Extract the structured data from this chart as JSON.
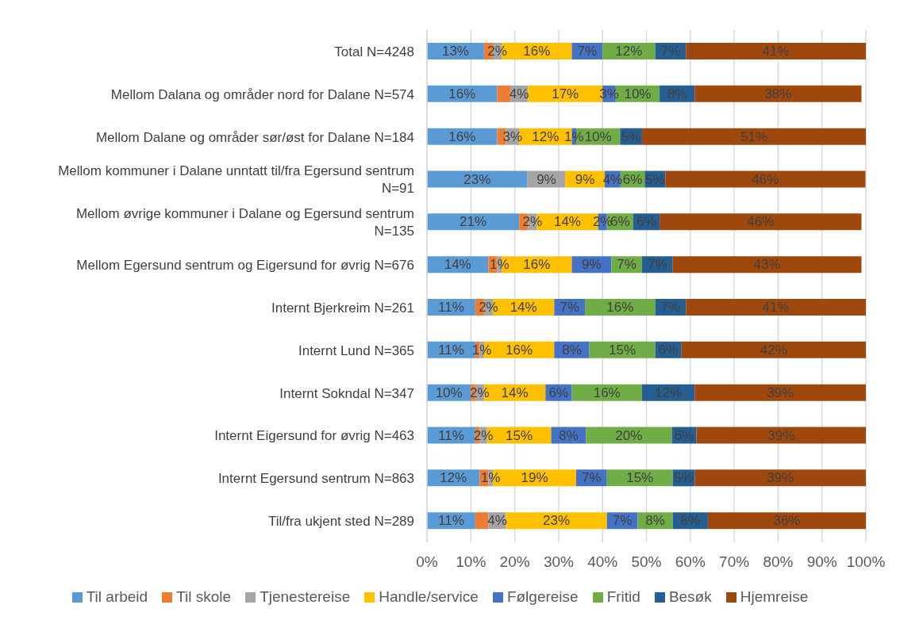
{
  "chart_data": {
    "type": "bar",
    "orientation": "horizontal",
    "stacked": true,
    "categories": [
      "Total N=4248",
      "Mellom Dalana og områder nord for Dalane N=574",
      "Mellom Dalane og områder sør/øst for Dalane N=184",
      "Mellom kommuner i Dalane unntatt til/fra Egersund sentrum N=91",
      "Mellom øvrige kommuner i Dalane og Egersund sentrum N=135",
      "Mellom Egersund sentrum og Eigersund for øvrig N=676",
      "Internt Bjerkreim N=261",
      "Internt Lund N=365",
      "Internt Sokndal N=347",
      "Internt Eigersund for øvrig N=463",
      "Internt Egersund sentrum N=863",
      "Til/fra ukjent sted N=289"
    ],
    "series": [
      {
        "name": "Til arbeid",
        "color": "#5b9bd5",
        "values": [
          13,
          16,
          16,
          22.9,
          21,
          14,
          11,
          11,
          10,
          11.0,
          12,
          11
        ],
        "value_labels": [
          "13%",
          "16%",
          "16%",
          "23%",
          "21%",
          "14%",
          "11%",
          "11%",
          "10%",
          "11%",
          "12%",
          "11%"
        ]
      },
      {
        "name": "Til skole",
        "color": "#ed7d31",
        "values": [
          2,
          3,
          2,
          0,
          2,
          2,
          2,
          1,
          1,
          1.0,
          2,
          3
        ],
        "value_labels": [
          null,
          null,
          null,
          null,
          null,
          null,
          null,
          null,
          null,
          null,
          null,
          null
        ]
      },
      {
        "name": "Tjenestereise",
        "color": "#a5a5a5",
        "values": [
          2,
          4,
          3,
          8.6,
          2,
          1,
          2,
          1,
          2,
          1.7,
          1,
          4
        ],
        "value_labels": [
          "2%",
          "4%",
          "3%",
          "9%",
          "2%",
          "1%",
          "2%",
          "1%",
          "2%",
          "2%",
          "1%",
          "4%"
        ]
      },
      {
        "name": "Handle/service",
        "color": "#ffc000",
        "values": [
          16,
          17,
          12,
          9.0,
          14,
          16,
          14,
          16,
          14,
          14.6,
          19,
          23
        ],
        "value_labels": [
          "16%",
          "17%",
          "12%",
          "9%",
          "14%",
          "16%",
          "14%",
          "16%",
          "14%",
          "15%",
          "19%",
          "23%"
        ]
      },
      {
        "name": "Følgereise",
        "color": "#4472c4",
        "values": [
          7,
          3,
          1,
          3.6,
          2,
          9,
          7,
          8,
          6,
          7.9,
          7,
          7
        ],
        "value_labels": [
          "7%",
          "3%",
          "1%",
          "4%",
          "2%",
          "9%",
          "7%",
          "8%",
          "6%",
          "8%",
          "7%",
          "7%"
        ]
      },
      {
        "name": "Fritid",
        "color": "#70ad47",
        "values": [
          12,
          10,
          10,
          5.5,
          6,
          7,
          16,
          15,
          16,
          19.6,
          15,
          8
        ],
        "value_labels": [
          "12%",
          "10%",
          "10%",
          "6%",
          "6%",
          "7%",
          "16%",
          "15%",
          "16%",
          "20%",
          "15%",
          "8%"
        ]
      },
      {
        "name": "Besøk",
        "color": "#255e91",
        "values": [
          7,
          8,
          5,
          4.7,
          6,
          7,
          7,
          6,
          12,
          5.6,
          5,
          8
        ],
        "value_labels": [
          "7%",
          "8%",
          "5%",
          "5%",
          "6%",
          "7%",
          "7%",
          "6%",
          "12%",
          "6%",
          "5%",
          "8%"
        ]
      },
      {
        "name": "Hjemreise",
        "color": "#9e480e",
        "values": [
          41,
          38,
          51,
          45.6,
          46,
          43,
          41,
          42,
          39,
          38.6,
          39,
          36
        ],
        "value_labels": [
          "41%",
          "38%",
          "51%",
          "46%",
          "46%",
          "43%",
          "41%",
          "42%",
          "39%",
          "39%",
          "39%",
          "36%"
        ]
      }
    ],
    "xlim": [
      0,
      100
    ],
    "xticks": [
      {
        "value": 0,
        "label": "0%"
      },
      {
        "value": 10,
        "label": "10%"
      },
      {
        "value": 20,
        "label": "20%"
      },
      {
        "value": 30,
        "label": "30%"
      },
      {
        "value": 40,
        "label": "40%"
      },
      {
        "value": 50,
        "label": "50%"
      },
      {
        "value": 60,
        "label": "60%"
      },
      {
        "value": 70,
        "label": "70%"
      },
      {
        "value": 80,
        "label": "80%"
      },
      {
        "value": 90,
        "label": "90%"
      },
      {
        "value": 100,
        "label": "100%"
      }
    ],
    "grid": "x",
    "legend": "bottom"
  }
}
